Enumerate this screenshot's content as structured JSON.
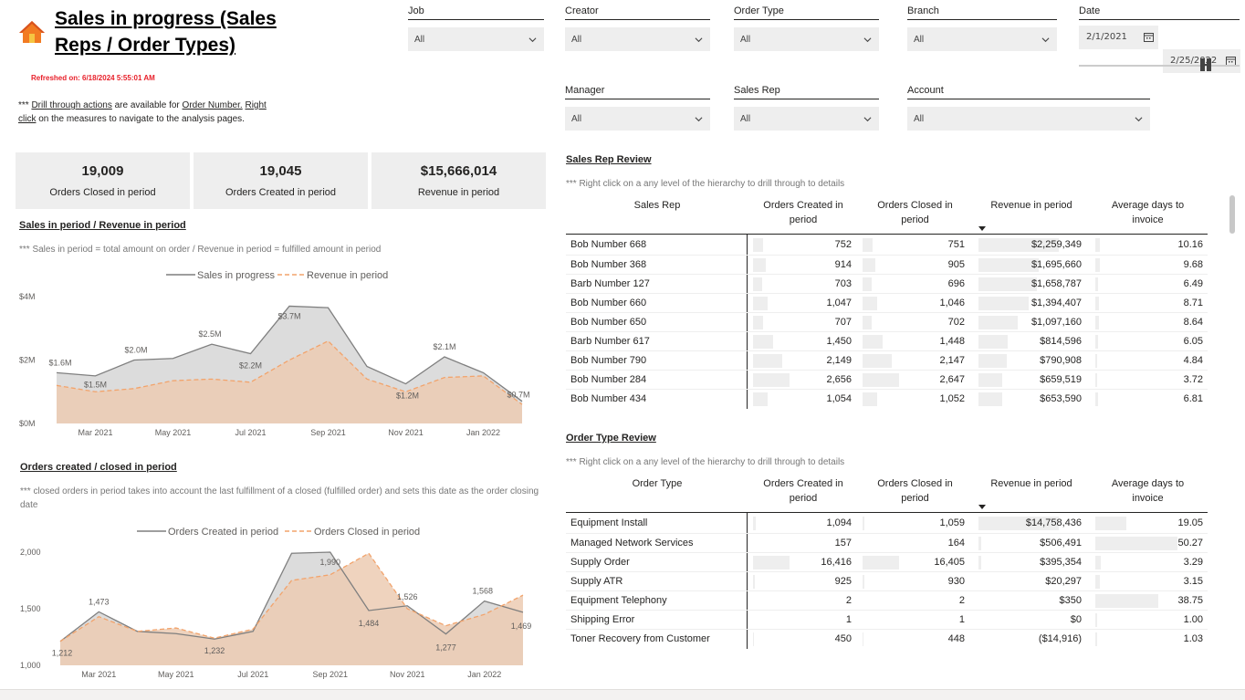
{
  "header": {
    "title": "Sales in progress (Sales Reps / Order Types)",
    "refreshed": "Refreshed on: 6/18/2024 5:55:01 AM",
    "drill_note_prefix": "*** ",
    "drill_note_link1": "Drill through actions",
    "drill_note_mid1": " are available for ",
    "drill_note_link2": "Order Number.",
    "drill_note_link3": "Right click",
    "drill_note_rest": " on the measures to navigate to the analysis pages."
  },
  "kpis": [
    {
      "value": "19,009",
      "label": "Orders Closed in period"
    },
    {
      "value": "19,045",
      "label": "Orders Created in period"
    },
    {
      "value": "$15,666,014",
      "label": "Revenue in period"
    }
  ],
  "slicers": {
    "job": {
      "label": "Job",
      "value": "All"
    },
    "creator": {
      "label": "Creator",
      "value": "All"
    },
    "order_type": {
      "label": "Order Type",
      "value": "All"
    },
    "branch": {
      "label": "Branch",
      "value": "All"
    },
    "manager": {
      "label": "Manager",
      "value": "All"
    },
    "sales_rep": {
      "label": "Sales Rep",
      "value": "All"
    },
    "account": {
      "label": "Account",
      "value": "All"
    },
    "date": {
      "label": "Date",
      "start": "2/1/2021",
      "end": "2/25/2022"
    }
  },
  "icons": {
    "home": "home-icon",
    "chevron": "chevron-down-icon",
    "calendar": "calendar-icon",
    "slider_handle": "slider-handle-icon",
    "sort": "sort-desc-icon"
  },
  "colors": {
    "sales_line": "#7f7f7f",
    "sales_fill": "#dcdcdc",
    "revenue_line": "#f2a36b",
    "revenue_fill": "#eccbb3",
    "refreshed": "#e8202a",
    "home": "#f27b22"
  },
  "sales_chart": {
    "title": "Sales in period / Revenue in period",
    "note": "*** Sales in period = total amount on order / Revenue in period = fulfilled amount in period",
    "legend": [
      "Sales in progress",
      "Revenue in period"
    ],
    "y_ticks": [
      "$4M",
      "$2M",
      "$0M"
    ],
    "x_ticks": [
      "Mar 2021",
      "May 2021",
      "Jul 2021",
      "Sep 2021",
      "Nov 2021",
      "Jan 2022"
    ],
    "labels": [
      "$1.6M",
      "$1.5M",
      "$2.0M",
      "$2.5M",
      "$2.2M",
      "$3.7M",
      "$2.1M",
      "$1.2M",
      "$0.7M"
    ]
  },
  "orders_chart": {
    "title": "Orders created / closed in period",
    "note": "*** closed orders in period takes into account the last fulfillment of a closed (fulfilled order) and sets this date as the order closing date",
    "legend": [
      "Orders Created in period",
      "Orders Closed in period"
    ],
    "y_ticks": [
      "2,000",
      "1,500",
      "1,000"
    ],
    "x_ticks": [
      "Mar 2021",
      "May 2021",
      "Jul 2021",
      "Sep 2021",
      "Nov 2021",
      "Jan 2022"
    ],
    "labels": [
      "1,212",
      "1,473",
      "1,232",
      "1,990",
      "1,484",
      "1,526",
      "1,277",
      "1,568",
      "1,469"
    ]
  },
  "chart_data": [
    {
      "type": "area",
      "title": "Sales in period / Revenue in period",
      "ylim": [
        0,
        4000000
      ],
      "x": [
        "Feb 2021",
        "Mar 2021",
        "Apr 2021",
        "May 2021",
        "Jun 2021",
        "Jul 2021",
        "Aug 2021",
        "Sep 2021",
        "Oct 2021",
        "Nov 2021",
        "Dec 2021",
        "Jan 2022",
        "Feb 2022"
      ],
      "series": [
        {
          "name": "Sales in progress",
          "values": [
            1600000,
            1500000,
            2000000,
            2050000,
            2500000,
            2200000,
            3700000,
            3650000,
            1800000,
            1250000,
            2100000,
            1600000,
            700000
          ]
        },
        {
          "name": "Revenue in period",
          "values": [
            1200000,
            1000000,
            1100000,
            1350000,
            1400000,
            1300000,
            2000000,
            2600000,
            1400000,
            1000000,
            1450000,
            1500000,
            600000
          ]
        }
      ]
    },
    {
      "type": "area",
      "title": "Orders created / closed in period",
      "ylim": [
        1000,
        2000
      ],
      "x": [
        "Feb 2021",
        "Mar 2021",
        "Apr 2021",
        "May 2021",
        "Jun 2021",
        "Jul 2021",
        "Aug 2021",
        "Sep 2021",
        "Oct 2021",
        "Nov 2021",
        "Dec 2021",
        "Jan 2022",
        "Feb 2022"
      ],
      "series": [
        {
          "name": "Orders Created in period",
          "values": [
            1212,
            1473,
            1300,
            1280,
            1232,
            1300,
            1990,
            2000,
            1484,
            1526,
            1277,
            1568,
            1469
          ]
        },
        {
          "name": "Orders Closed in period",
          "values": [
            1212,
            1430,
            1300,
            1330,
            1240,
            1320,
            1750,
            1800,
            1990,
            1500,
            1350,
            1450,
            1620
          ]
        }
      ]
    }
  ],
  "sales_rep_table": {
    "title": "Sales Rep Review",
    "note": "*** Right click on a any level of the hierarchy to drill through to details",
    "headers": [
      "Sales Rep",
      "Orders Created in period",
      "Orders Closed in period",
      "Revenue in period",
      "Average days to invoice"
    ],
    "rows": [
      {
        "name": "Bob Number 668",
        "created": "752",
        "closed": "751",
        "revenue": "$2,259,349",
        "days": "10.16",
        "c_frac": 0.28,
        "cl_frac": 0.28,
        "r_frac": 1.0,
        "d_frac": 0.05
      },
      {
        "name": "Bob Number 368",
        "created": "914",
        "closed": "905",
        "revenue": "$1,695,660",
        "days": "9.68",
        "c_frac": 0.34,
        "cl_frac": 0.34,
        "r_frac": 0.75,
        "d_frac": 0.05
      },
      {
        "name": "Barb Number 127",
        "created": "703",
        "closed": "696",
        "revenue": "$1,658,787",
        "days": "6.49",
        "c_frac": 0.26,
        "cl_frac": 0.26,
        "r_frac": 0.73,
        "d_frac": 0.03
      },
      {
        "name": "Bob Number 660",
        "created": "1,047",
        "closed": "1,046",
        "revenue": "$1,394,407",
        "days": "8.71",
        "c_frac": 0.39,
        "cl_frac": 0.39,
        "r_frac": 0.62,
        "d_frac": 0.04
      },
      {
        "name": "Bob Number 650",
        "created": "707",
        "closed": "702",
        "revenue": "$1,097,160",
        "days": "8.64",
        "c_frac": 0.27,
        "cl_frac": 0.26,
        "r_frac": 0.49,
        "d_frac": 0.04
      },
      {
        "name": "Barb Number 617",
        "created": "1,450",
        "closed": "1,448",
        "revenue": "$814,596",
        "days": "6.05",
        "c_frac": 0.55,
        "cl_frac": 0.55,
        "r_frac": 0.36,
        "d_frac": 0.03
      },
      {
        "name": "Bob Number 790",
        "created": "2,149",
        "closed": "2,147",
        "revenue": "$790,908",
        "days": "4.84",
        "c_frac": 0.81,
        "cl_frac": 0.81,
        "r_frac": 0.35,
        "d_frac": 0.02
      },
      {
        "name": "Bob Number 284",
        "created": "2,656",
        "closed": "2,647",
        "revenue": "$659,519",
        "days": "3.72",
        "c_frac": 1.0,
        "cl_frac": 1.0,
        "r_frac": 0.29,
        "d_frac": 0.02
      },
      {
        "name": "Bob Number 434",
        "created": "1,054",
        "closed": "1,052",
        "revenue": "$653,590",
        "days": "6.81",
        "c_frac": 0.4,
        "cl_frac": 0.4,
        "r_frac": 0.29,
        "d_frac": 0.03
      }
    ]
  },
  "order_type_table": {
    "title": "Order Type Review",
    "note": "*** Right click on a any level of the hierarchy to drill through to details",
    "headers": [
      "Order Type",
      "Orders Created in period",
      "Orders Closed in period",
      "Revenue in period",
      "Average days to invoice"
    ],
    "rows": [
      {
        "name": "Equipment Install",
        "created": "1,094",
        "closed": "1,059",
        "revenue": "$14,758,436",
        "days": "19.05",
        "c_frac": 0.07,
        "cl_frac": 0.06,
        "r_frac": 1.0,
        "d_frac": 0.38
      },
      {
        "name": "Managed Network Services",
        "created": "157",
        "closed": "164",
        "revenue": "$506,491",
        "days": "50.27",
        "c_frac": 0.01,
        "cl_frac": 0.01,
        "r_frac": 0.03,
        "d_frac": 1.0
      },
      {
        "name": "Supply Order",
        "created": "16,416",
        "closed": "16,405",
        "revenue": "$395,354",
        "days": "3.29",
        "c_frac": 1.0,
        "cl_frac": 1.0,
        "r_frac": 0.03,
        "d_frac": 0.07
      },
      {
        "name": "Supply ATR",
        "created": "925",
        "closed": "930",
        "revenue": "$20,297",
        "days": "3.15",
        "c_frac": 0.06,
        "cl_frac": 0.06,
        "r_frac": 0.0,
        "d_frac": 0.06
      },
      {
        "name": "Equipment Telephony",
        "created": "2",
        "closed": "2",
        "revenue": "$350",
        "days": "38.75",
        "c_frac": 0.0,
        "cl_frac": 0.0,
        "r_frac": 0.0,
        "d_frac": 0.77
      },
      {
        "name": "Shipping Error",
        "created": "1",
        "closed": "1",
        "revenue": "$0",
        "days": "1.00",
        "c_frac": 0.0,
        "cl_frac": 0.0,
        "r_frac": 0.0,
        "d_frac": 0.02
      },
      {
        "name": "Toner Recovery from Customer",
        "created": "450",
        "closed": "448",
        "revenue": "($14,916)",
        "days": "1.03",
        "c_frac": 0.03,
        "cl_frac": 0.03,
        "r_frac": 0.0,
        "d_frac": 0.02
      }
    ]
  }
}
